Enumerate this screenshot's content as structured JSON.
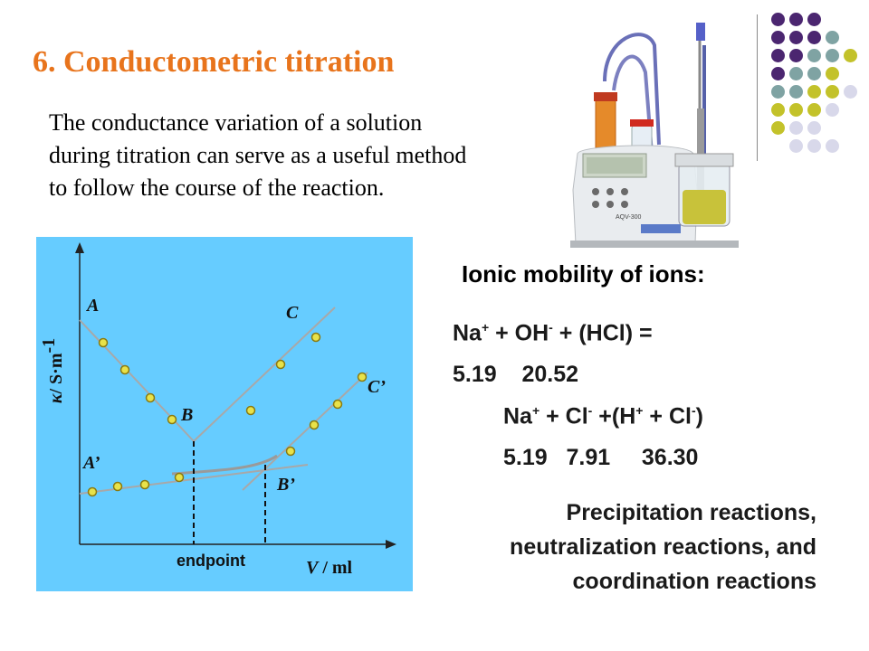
{
  "title": "6. Conductometric titration",
  "intro": {
    "line1": "The conductance variation of a solution",
    "line2": "during titration can serve as a useful method",
    "line3": "to follow the course of the reaction."
  },
  "decor_colors": [
    "#4b2670",
    "#7fa3a3",
    "#c3c22a",
    "#d8d8ea"
  ],
  "instrument": {
    "device_label": "AQV-300"
  },
  "graph": {
    "background": "#66ccff",
    "ylabel_kappa": "κ",
    "ylabel_unit": "/ S·m",
    "ylabel_exp": "-1",
    "xlabel_v": "V",
    "xlabel_unit": " / ml",
    "endpoint_label": "endpoint",
    "point_labels": {
      "A": "A",
      "B": "B",
      "C": "C",
      "A2": "A’",
      "B2": "B’",
      "C2": "C’"
    }
  },
  "mobility": {
    "heading": "Ionic mobility of ions:",
    "eq1_na": "Na",
    "eq1_plus1": "+",
    "eq1_mid": " + OH",
    "eq1_minus": "-",
    "eq1_end": " + (HCl) =",
    "vals1": "5.19    20.52",
    "eq2_na": "Na",
    "eq2_plus1": "+",
    "eq2_mid": " + Cl",
    "eq2_minus1": "-",
    "eq2_mid2": " +(H",
    "eq2_plus2": "+",
    "eq2_mid3": " + Cl",
    "eq2_minus2": "-",
    "eq2_end": ")",
    "vals2": "5.19   7.91     36.30"
  },
  "reactions": {
    "line1": "Precipitation reactions,",
    "line2": "neutralization reactions, and",
    "line3": "coordination reactions"
  }
}
